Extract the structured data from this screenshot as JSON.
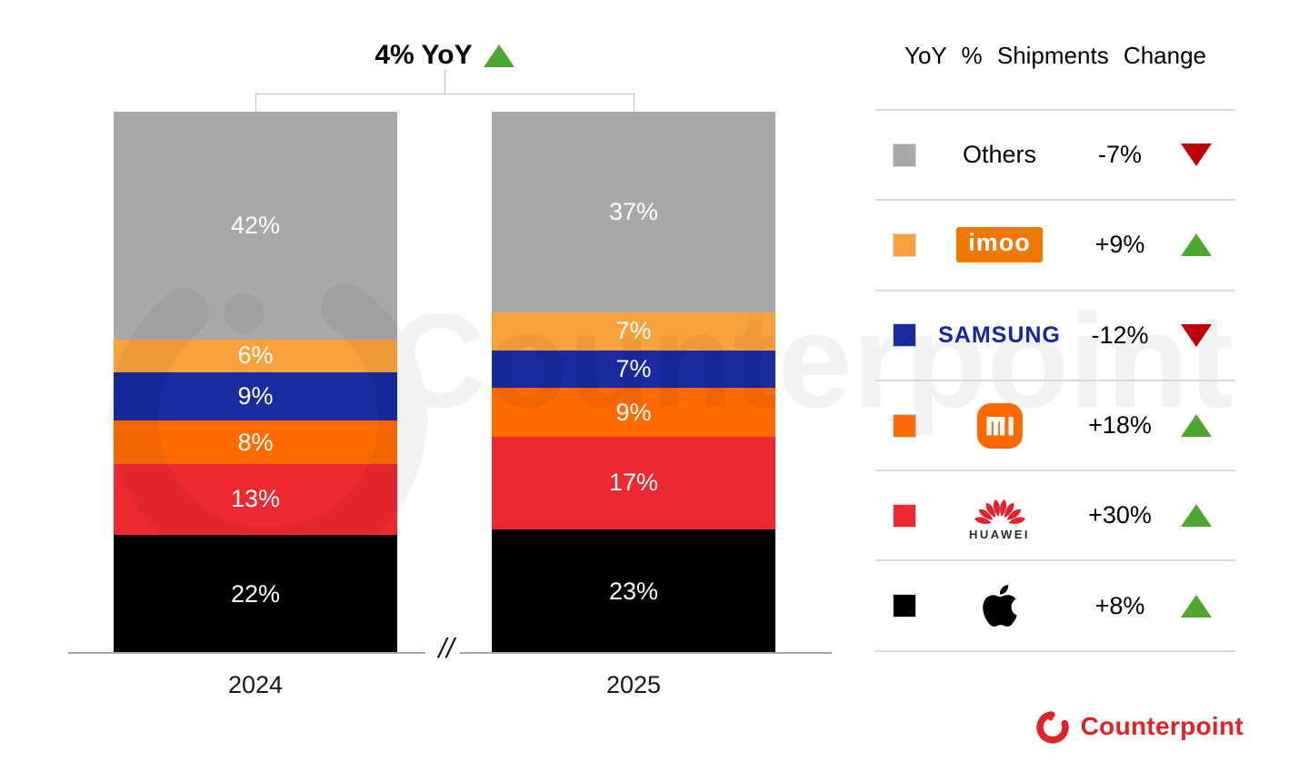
{
  "title": {
    "label": "4% YoY",
    "trend": "up"
  },
  "watermark": {
    "text": "Counterpoint"
  },
  "chart_data": {
    "type": "bar",
    "stacked": true,
    "title": "4% YoY",
    "categories": [
      "2024",
      "2025"
    ],
    "series_bottom_to_top": [
      {
        "name": "Apple",
        "color": "#000000",
        "values": [
          22,
          23
        ]
      },
      {
        "name": "HUAWEI",
        "color": "#ED2830",
        "values": [
          13,
          17
        ]
      },
      {
        "name": "Xiaomi",
        "color": "#FF6B00",
        "values": [
          8,
          9
        ]
      },
      {
        "name": "Samsung",
        "color": "#1A2AA0",
        "values": [
          9,
          7
        ]
      },
      {
        "name": "imoo",
        "color": "#F9A13D",
        "values": [
          6,
          7
        ]
      },
      {
        "name": "Others",
        "color": "#A8A8A8",
        "values": [
          42,
          37
        ]
      }
    ],
    "value_suffix": "%",
    "ylim": [
      0,
      100
    ],
    "axis_break": "//",
    "legend_position": "right",
    "grid": false
  },
  "legend": {
    "header": "YoY % Shipments Change",
    "rows": [
      {
        "brand": "Others",
        "change": "-7%",
        "direction": "down",
        "color": "#A8A8A8"
      },
      {
        "brand": "imoo",
        "change": "+9%",
        "direction": "up",
        "color": "#F9A13D"
      },
      {
        "brand": "SAMSUNG",
        "change": "-12%",
        "direction": "down",
        "color": "#1A2AA0"
      },
      {
        "brand": "Xiaomi",
        "change": "+18%",
        "direction": "up",
        "color": "#FF6B00"
      },
      {
        "brand": "HUAWEI",
        "change": "+30%",
        "direction": "up",
        "color": "#ED2830"
      },
      {
        "brand": "Apple",
        "change": "+8%",
        "direction": "up",
        "color": "#000000"
      }
    ]
  },
  "footer": {
    "brand": "Counterpoint"
  },
  "colors": {
    "up_triangle": "#4EA72E",
    "down_triangle": "#C00000",
    "counterpoint_red": "#E02128",
    "samsung_blue": "#1428A0",
    "imoo_orange": "#F07800",
    "mi_orange": "#FF6900",
    "axis_gray": "#A6A6A6"
  }
}
